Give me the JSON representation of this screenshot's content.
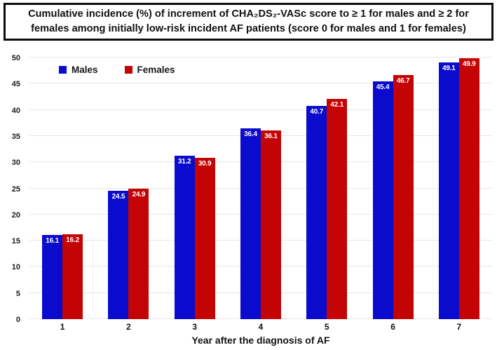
{
  "title": "Cumulative incidence (%) of increment of CHA₂DS₂-VASc score to ≥ 1 for males and ≥ 2 for females among initially low-risk incident AF patients (score 0 for males and 1 for females)",
  "chart_data": {
    "type": "bar",
    "categories": [
      "1",
      "2",
      "3",
      "4",
      "5",
      "6",
      "7"
    ],
    "series": [
      {
        "name": "Males",
        "color": "#0b0bcd",
        "values": [
          16.1,
          24.5,
          31.2,
          36.4,
          40.7,
          45.4,
          49.1
        ]
      },
      {
        "name": "Females",
        "color": "#c40404",
        "values": [
          16.2,
          24.9,
          30.9,
          36.1,
          42.1,
          46.7,
          49.9
        ]
      }
    ],
    "xlabel": "Year after the diagnosis of AF",
    "ylabel": "",
    "ylim": [
      0,
      50
    ],
    "yticks": [
      0,
      5,
      10,
      15,
      20,
      25,
      30,
      35,
      40,
      45,
      50
    ],
    "grid": "horizontal",
    "gridline_color": "#e7e7e7",
    "legend_position": "top-left-inside",
    "data_label_color": "#ffffff"
  }
}
